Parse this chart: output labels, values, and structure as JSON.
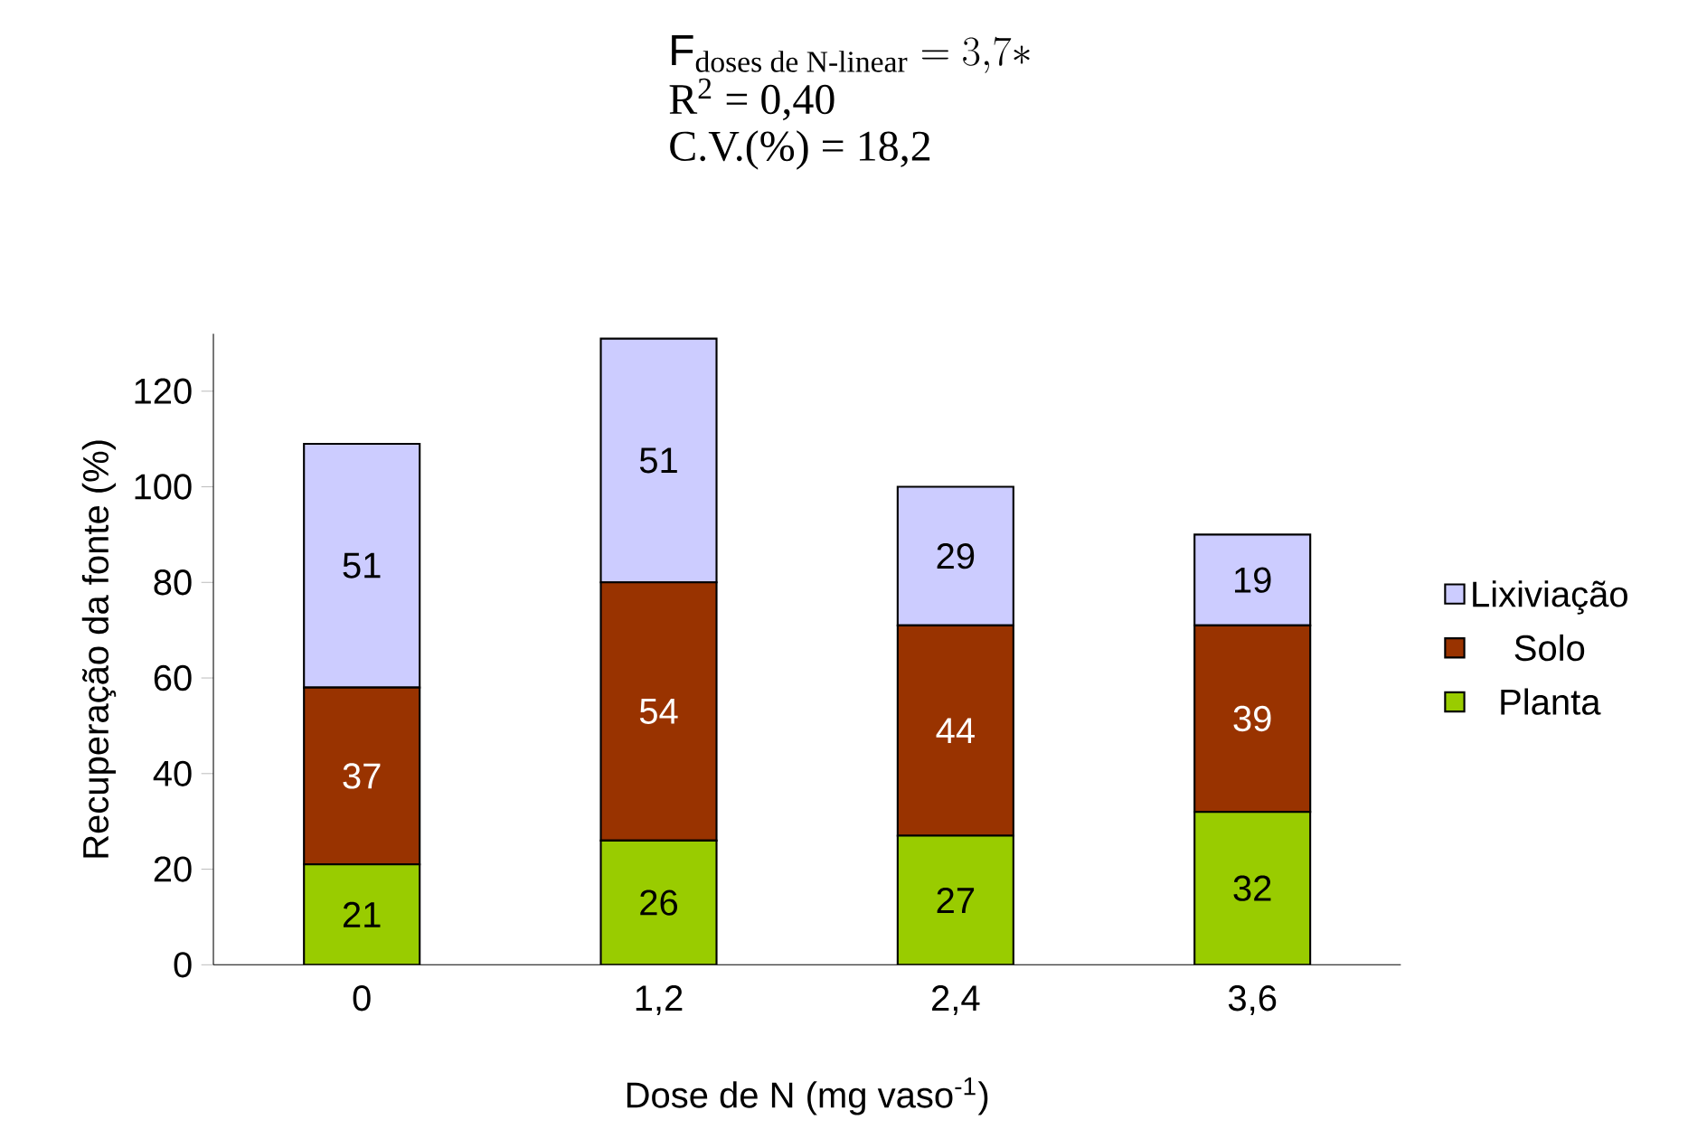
{
  "chart_data": {
    "type": "bar",
    "stacked": true,
    "categories": [
      "0",
      "1,2",
      "2,4",
      "3,6"
    ],
    "series": [
      {
        "name": "Planta",
        "color": "#99cc00",
        "values": [
          21,
          26,
          27,
          32
        ]
      },
      {
        "name": "Solo",
        "color": "#993300",
        "values": [
          37,
          54,
          44,
          39
        ]
      },
      {
        "name": "Lixiviação",
        "color": "#ccccff",
        "values": [
          51,
          51,
          29,
          19
        ]
      }
    ],
    "ylim": [
      0,
      132
    ],
    "yticks": [
      0,
      20,
      40,
      60,
      80,
      100,
      120
    ],
    "xlabel": "Dose de N (mg vaso$^{-1}$)",
    "ylabel": "Recuperação da fonte (%)",
    "data_labels": true,
    "legend": "right",
    "grid": false,
    "annotations": [
      "\\mathrm{F}_{\\text{doses de N-linear}} = 3{,}7*",
      "R$^{2}$ = 0,40",
      "C.V.(%) = 18,2"
    ]
  }
}
